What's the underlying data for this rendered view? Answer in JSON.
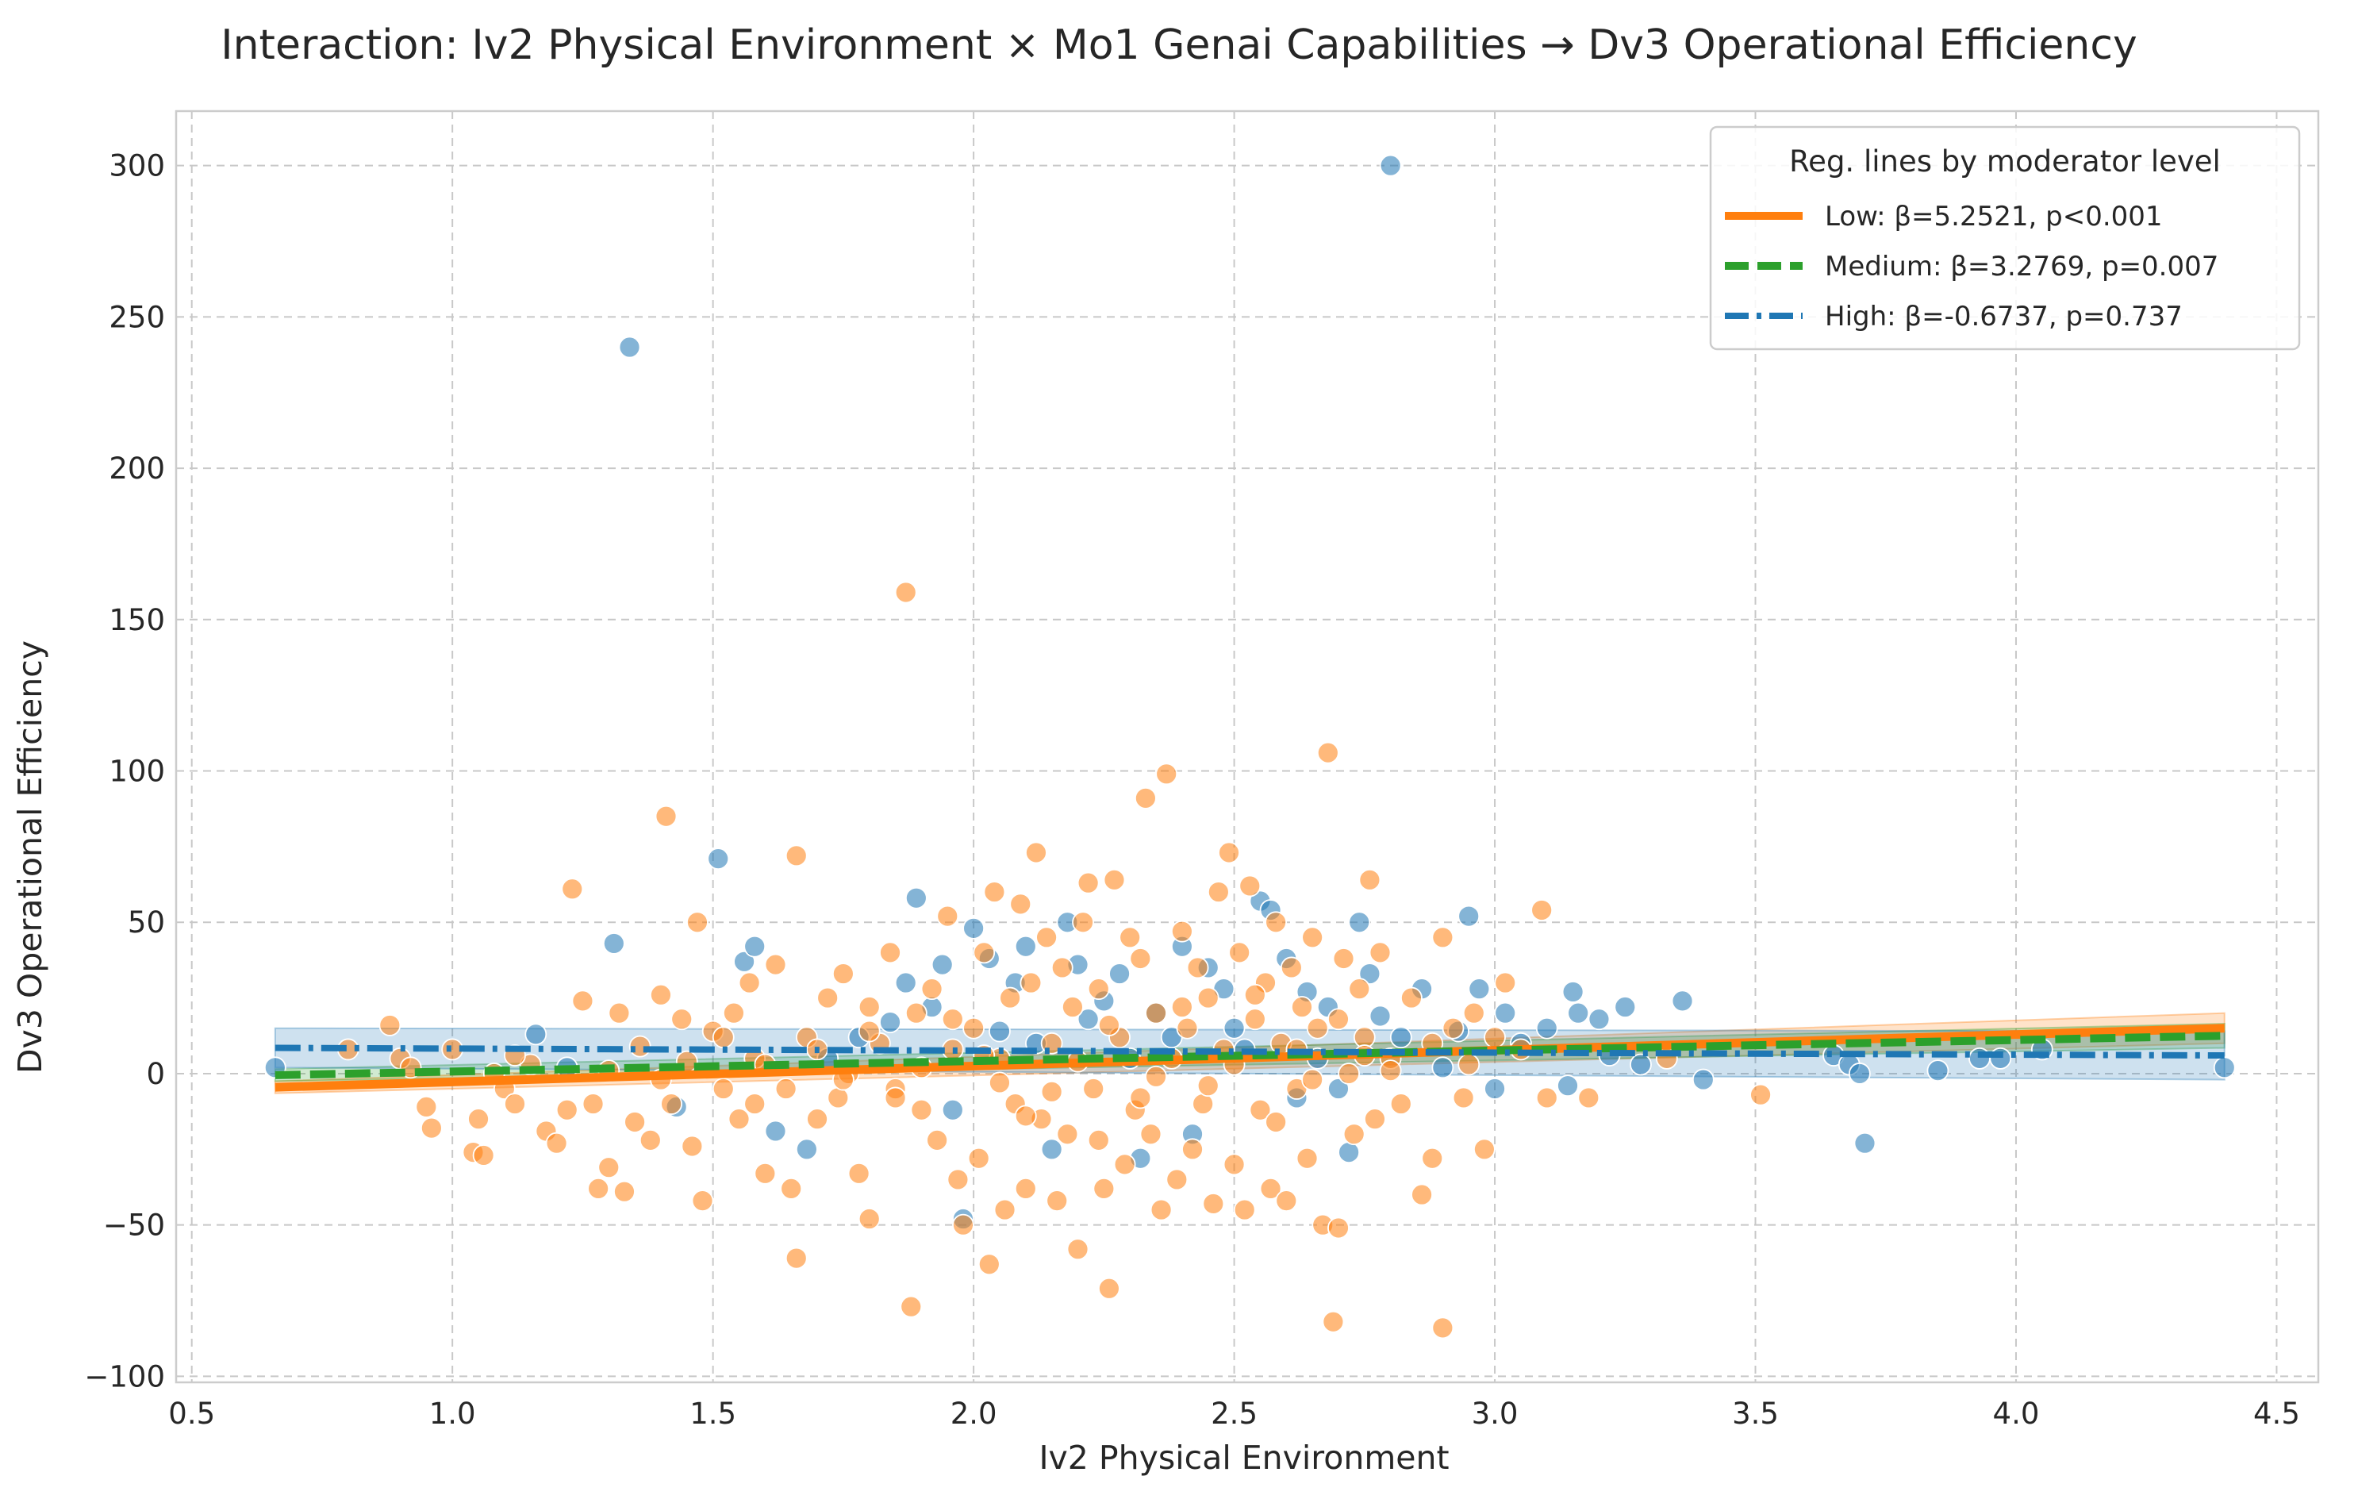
{
  "chart_data": {
    "type": "scatter",
    "title": "Interaction: Iv2 Physical Environment × Mo1 Genai Capabilities → Dv3 Operational Efficiency",
    "xlabel": "Iv2 Physical Environment",
    "ylabel": "Dv3 Operational Efficiency",
    "xlim": [
      0.47,
      4.58
    ],
    "ylim": [
      -102,
      318
    ],
    "xticks": [
      0.5,
      1.0,
      1.5,
      2.0,
      2.5,
      3.0,
      3.5,
      4.0,
      4.5
    ],
    "xtick_labels": [
      "0.5",
      "1.0",
      "1.5",
      "2.0",
      "2.5",
      "3.0",
      "3.5",
      "4.0",
      "4.5"
    ],
    "yticks": [
      -100,
      -50,
      0,
      50,
      100,
      150,
      200,
      250,
      300
    ],
    "ytick_labels": [
      "−100",
      "−50",
      "0",
      "50",
      "100",
      "150",
      "200",
      "250",
      "300"
    ],
    "grid": true,
    "legend": {
      "title": "Reg. lines by moderator level",
      "placement": "top-right",
      "entries": [
        {
          "label": "Low: β=5.2521, p<0.001",
          "color": "#ff7f0e",
          "style": "solid"
        },
        {
          "label": "Medium: β=3.2769, p=0.007",
          "color": "#2ca02c",
          "style": "dashed"
        },
        {
          "label": "High: β=-0.6737, p=0.737",
          "color": "#1f77b4",
          "style": "dashdot"
        }
      ]
    },
    "regression_lines": [
      {
        "level": "Low",
        "color": "#ff7f0e",
        "style": "solid",
        "x": [
          0.66,
          4.4
        ],
        "y": [
          -4.5,
          15.0
        ],
        "ci": [
          [
            -6.5,
            -2.5
          ],
          [
            10.0,
            20.0
          ]
        ]
      },
      {
        "level": "Medium",
        "color": "#2ca02c",
        "style": "dashed",
        "x": [
          0.66,
          4.4
        ],
        "y": [
          -0.5,
          12.5
        ],
        "ci": [
          [
            -2.5,
            1.5
          ],
          [
            8.5,
            16.5
          ]
        ]
      },
      {
        "level": "High",
        "color": "#1f77b4",
        "style": "dashdot",
        "x": [
          0.66,
          4.4
        ],
        "y": [
          8.5,
          6.0
        ],
        "ci": [
          [
            2.0,
            15.0
          ],
          [
            -2.0,
            14.0
          ]
        ]
      }
    ],
    "series": [
      {
        "color": "#1f77b4",
        "points": [
          [
            0.66,
            2
          ],
          [
            1.16,
            13
          ],
          [
            1.22,
            2
          ],
          [
            1.31,
            43
          ],
          [
            1.34,
            240
          ],
          [
            1.43,
            -11
          ],
          [
            1.51,
            71
          ],
          [
            1.56,
            37
          ],
          [
            1.58,
            42
          ],
          [
            1.62,
            -19
          ],
          [
            1.68,
            -25
          ],
          [
            1.72,
            5
          ],
          [
            1.78,
            12
          ],
          [
            1.84,
            17
          ],
          [
            1.87,
            30
          ],
          [
            1.89,
            58
          ],
          [
            1.92,
            22
          ],
          [
            1.94,
            36
          ],
          [
            1.96,
            -12
          ],
          [
            1.98,
            -48
          ],
          [
            2.0,
            48
          ],
          [
            2.03,
            38
          ],
          [
            2.05,
            14
          ],
          [
            2.08,
            30
          ],
          [
            2.1,
            42
          ],
          [
            2.12,
            10
          ],
          [
            2.15,
            -25
          ],
          [
            2.18,
            50
          ],
          [
            2.2,
            36
          ],
          [
            2.22,
            18
          ],
          [
            2.25,
            24
          ],
          [
            2.28,
            33
          ],
          [
            2.3,
            5
          ],
          [
            2.32,
            -28
          ],
          [
            2.35,
            20
          ],
          [
            2.38,
            12
          ],
          [
            2.4,
            42
          ],
          [
            2.42,
            -20
          ],
          [
            2.45,
            35
          ],
          [
            2.48,
            28
          ],
          [
            2.5,
            15
          ],
          [
            2.52,
            8
          ],
          [
            2.55,
            57
          ],
          [
            2.57,
            54
          ],
          [
            2.6,
            38
          ],
          [
            2.62,
            -8
          ],
          [
            2.64,
            27
          ],
          [
            2.66,
            5
          ],
          [
            2.68,
            22
          ],
          [
            2.7,
            -5
          ],
          [
            2.72,
            -26
          ],
          [
            2.74,
            50
          ],
          [
            2.76,
            33
          ],
          [
            2.78,
            19
          ],
          [
            2.8,
            300
          ],
          [
            2.82,
            12
          ],
          [
            2.86,
            28
          ],
          [
            2.9,
            2
          ],
          [
            2.93,
            14
          ],
          [
            2.95,
            52
          ],
          [
            2.97,
            28
          ],
          [
            3.0,
            -5
          ],
          [
            3.02,
            20
          ],
          [
            3.05,
            10
          ],
          [
            3.1,
            15
          ],
          [
            3.14,
            -4
          ],
          [
            3.15,
            27
          ],
          [
            3.16,
            20
          ],
          [
            3.2,
            18
          ],
          [
            3.22,
            6
          ],
          [
            3.25,
            22
          ],
          [
            3.28,
            3
          ],
          [
            3.36,
            24
          ],
          [
            3.4,
            -2
          ],
          [
            3.65,
            6
          ],
          [
            3.68,
            3
          ],
          [
            3.7,
            0
          ],
          [
            3.71,
            -23
          ],
          [
            3.85,
            1
          ],
          [
            3.93,
            5
          ],
          [
            3.97,
            5
          ],
          [
            4.05,
            8
          ],
          [
            4.4,
            2
          ]
        ]
      },
      {
        "color": "#ff7f0e",
        "points": [
          [
            0.8,
            8
          ],
          [
            0.88,
            16
          ],
          [
            0.9,
            5
          ],
          [
            0.95,
            -11
          ],
          [
            0.96,
            -18
          ],
          [
            1.0,
            8
          ],
          [
            1.04,
            -26
          ],
          [
            1.05,
            -15
          ],
          [
            1.06,
            -27
          ],
          [
            1.08,
            0
          ],
          [
            1.1,
            -5
          ],
          [
            1.12,
            -10
          ],
          [
            1.15,
            3
          ],
          [
            1.18,
            -19
          ],
          [
            1.2,
            -23
          ],
          [
            1.22,
            -12
          ],
          [
            1.23,
            61
          ],
          [
            1.25,
            24
          ],
          [
            1.27,
            -10
          ],
          [
            1.28,
            -38
          ],
          [
            1.3,
            -31
          ],
          [
            1.32,
            20
          ],
          [
            1.33,
            -39
          ],
          [
            1.35,
            -16
          ],
          [
            1.36,
            9
          ],
          [
            1.38,
            -22
          ],
          [
            1.4,
            26
          ],
          [
            1.41,
            85
          ],
          [
            1.42,
            -10
          ],
          [
            1.44,
            18
          ],
          [
            1.46,
            -24
          ],
          [
            1.47,
            50
          ],
          [
            1.48,
            -42
          ],
          [
            1.5,
            14
          ],
          [
            1.52,
            -5
          ],
          [
            1.54,
            20
          ],
          [
            1.55,
            -15
          ],
          [
            1.57,
            30
          ],
          [
            1.58,
            5
          ],
          [
            1.6,
            -33
          ],
          [
            1.62,
            36
          ],
          [
            1.64,
            -5
          ],
          [
            1.65,
            -38
          ],
          [
            1.66,
            72
          ],
          [
            1.66,
            -61
          ],
          [
            1.68,
            12
          ],
          [
            1.7,
            -15
          ],
          [
            1.72,
            25
          ],
          [
            1.74,
            -8
          ],
          [
            1.75,
            33
          ],
          [
            1.76,
            0
          ],
          [
            1.78,
            -33
          ],
          [
            1.8,
            22
          ],
          [
            1.8,
            -48
          ],
          [
            1.82,
            10
          ],
          [
            1.84,
            40
          ],
          [
            1.85,
            -5
          ],
          [
            1.87,
            159
          ],
          [
            1.88,
            -77
          ],
          [
            1.89,
            20
          ],
          [
            1.9,
            -12
          ],
          [
            1.92,
            28
          ],
          [
            1.93,
            -22
          ],
          [
            1.95,
            52
          ],
          [
            1.96,
            8
          ],
          [
            1.97,
            -35
          ],
          [
            1.98,
            -50
          ],
          [
            2.0,
            15
          ],
          [
            2.01,
            -28
          ],
          [
            2.02,
            40
          ],
          [
            2.03,
            -63
          ],
          [
            2.04,
            60
          ],
          [
            2.05,
            5
          ],
          [
            2.06,
            -45
          ],
          [
            2.07,
            25
          ],
          [
            2.08,
            -10
          ],
          [
            2.09,
            56
          ],
          [
            2.1,
            -38
          ],
          [
            2.11,
            30
          ],
          [
            2.12,
            73
          ],
          [
            2.13,
            -15
          ],
          [
            2.14,
            45
          ],
          [
            2.15,
            10
          ],
          [
            2.16,
            -42
          ],
          [
            2.17,
            35
          ],
          [
            2.18,
            -20
          ],
          [
            2.19,
            22
          ],
          [
            2.2,
            -58
          ],
          [
            2.21,
            50
          ],
          [
            2.22,
            63
          ],
          [
            2.23,
            -5
          ],
          [
            2.24,
            28
          ],
          [
            2.25,
            -38
          ],
          [
            2.26,
            -71
          ],
          [
            2.27,
            64
          ],
          [
            2.28,
            12
          ],
          [
            2.29,
            -30
          ],
          [
            2.3,
            45
          ],
          [
            2.31,
            -12
          ],
          [
            2.32,
            38
          ],
          [
            2.33,
            91
          ],
          [
            2.34,
            -20
          ],
          [
            2.35,
            20
          ],
          [
            2.36,
            -45
          ],
          [
            2.37,
            99
          ],
          [
            2.38,
            5
          ],
          [
            2.39,
            -35
          ],
          [
            2.4,
            47
          ],
          [
            2.41,
            15
          ],
          [
            2.42,
            -25
          ],
          [
            2.43,
            35
          ],
          [
            2.44,
            -10
          ],
          [
            2.45,
            25
          ],
          [
            2.46,
            -43
          ],
          [
            2.47,
            60
          ],
          [
            2.48,
            8
          ],
          [
            2.49,
            73
          ],
          [
            2.5,
            -30
          ],
          [
            2.51,
            40
          ],
          [
            2.52,
            -45
          ],
          [
            2.53,
            62
          ],
          [
            2.54,
            18
          ],
          [
            2.55,
            -12
          ],
          [
            2.56,
            30
          ],
          [
            2.57,
            -38
          ],
          [
            2.58,
            50
          ],
          [
            2.59,
            10
          ],
          [
            2.6,
            -42
          ],
          [
            2.61,
            35
          ],
          [
            2.62,
            -5
          ],
          [
            2.63,
            22
          ],
          [
            2.64,
            -28
          ],
          [
            2.65,
            45
          ],
          [
            2.66,
            15
          ],
          [
            2.67,
            -50
          ],
          [
            2.68,
            106
          ],
          [
            2.69,
            -82
          ],
          [
            2.7,
            -51
          ],
          [
            2.71,
            38
          ],
          [
            2.72,
            0
          ],
          [
            2.73,
            -20
          ],
          [
            2.74,
            28
          ],
          [
            2.75,
            12
          ],
          [
            2.76,
            64
          ],
          [
            2.77,
            -15
          ],
          [
            2.78,
            40
          ],
          [
            2.8,
            5
          ],
          [
            2.82,
            -10
          ],
          [
            2.84,
            25
          ],
          [
            2.86,
            -40
          ],
          [
            2.88,
            -28
          ],
          [
            2.9,
            45
          ],
          [
            2.9,
            -84
          ],
          [
            2.92,
            15
          ],
          [
            2.94,
            -8
          ],
          [
            2.96,
            20
          ],
          [
            2.98,
            -25
          ],
          [
            3.0,
            12
          ],
          [
            3.02,
            30
          ],
          [
            3.05,
            8
          ],
          [
            3.09,
            54
          ],
          [
            3.1,
            -8
          ],
          [
            3.18,
            -8
          ],
          [
            3.33,
            5
          ],
          [
            3.51,
            -7
          ],
          [
            0.92,
            2
          ],
          [
            1.12,
            6
          ],
          [
            1.3,
            1
          ],
          [
            1.45,
            4
          ],
          [
            1.6,
            3
          ],
          [
            1.75,
            -2
          ],
          [
            1.9,
            2
          ],
          [
            2.05,
            -3
          ],
          [
            2.2,
            4
          ],
          [
            2.35,
            -1
          ],
          [
            2.5,
            3
          ],
          [
            2.65,
            -2
          ],
          [
            2.8,
            1
          ],
          [
            2.95,
            3
          ],
          [
            1.7,
            8
          ],
          [
            1.85,
            -8
          ],
          [
            2.15,
            -6
          ],
          [
            2.45,
            -4
          ],
          [
            2.75,
            6
          ],
          [
            1.52,
            12
          ],
          [
            1.96,
            18
          ],
          [
            2.26,
            16
          ],
          [
            2.58,
            -16
          ],
          [
            2.88,
            10
          ],
          [
            1.4,
            -2
          ],
          [
            2.02,
            6
          ],
          [
            2.32,
            -8
          ],
          [
            2.62,
            8
          ],
          [
            1.58,
            -10
          ],
          [
            2.1,
            -14
          ],
          [
            2.4,
            22
          ],
          [
            2.7,
            18
          ],
          [
            1.8,
            14
          ],
          [
            2.24,
            -22
          ],
          [
            2.54,
            26
          ]
        ]
      }
    ]
  }
}
